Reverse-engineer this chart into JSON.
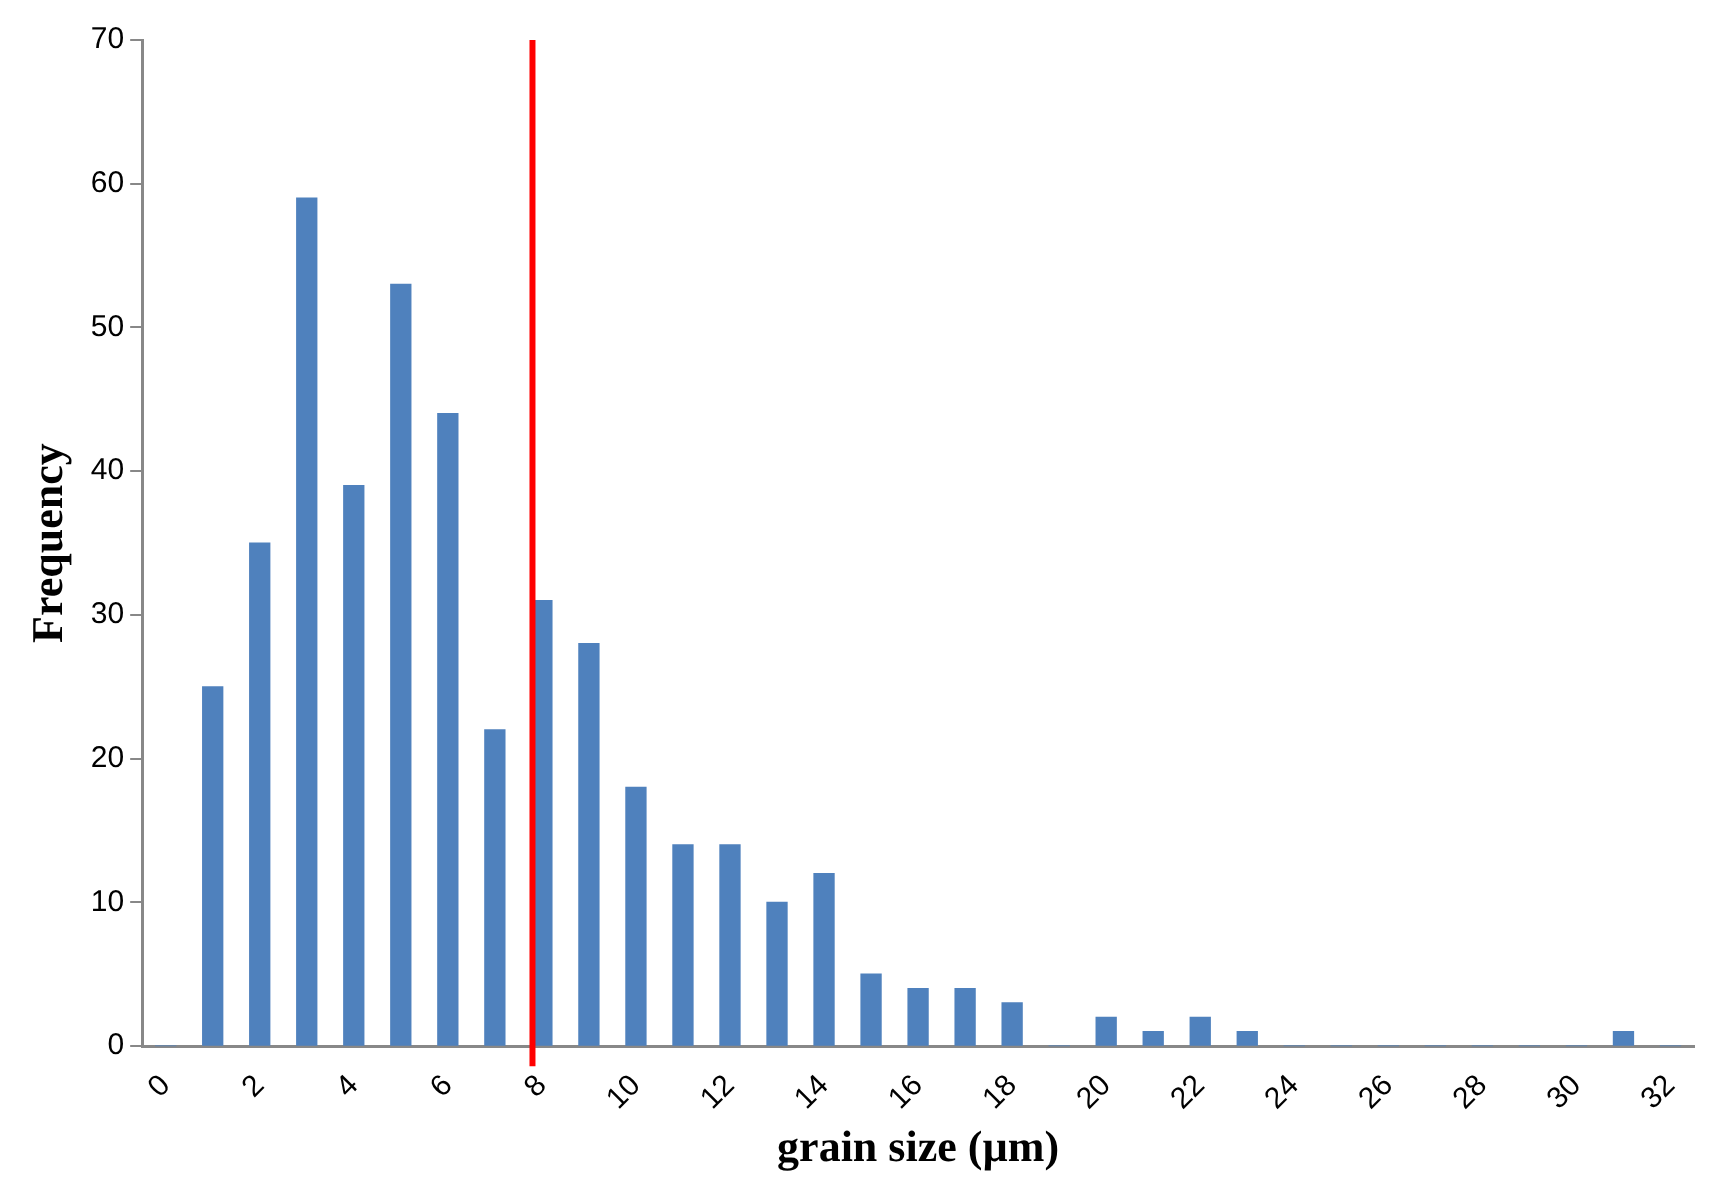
{
  "chart_data": {
    "type": "bar",
    "xlabel": "grain size (µm)",
    "ylabel": "Frequency",
    "x": [
      0,
      1,
      2,
      3,
      4,
      5,
      6,
      7,
      8,
      9,
      10,
      11,
      12,
      13,
      14,
      15,
      16,
      17,
      18,
      19,
      20,
      21,
      22,
      23,
      24,
      25,
      26,
      27,
      28,
      29,
      30,
      31,
      32
    ],
    "values": [
      0,
      25,
      35,
      59,
      39,
      53,
      44,
      22,
      31,
      28,
      18,
      14,
      14,
      10,
      12,
      5,
      4,
      4,
      3,
      0,
      2,
      1,
      2,
      1,
      0,
      0,
      0,
      0,
      0,
      0,
      0,
      1,
      0
    ],
    "color": "#4f81bd",
    "xlim": [
      -0.5,
      32.5
    ],
    "xticks": [
      0,
      2,
      4,
      6,
      8,
      10,
      12,
      14,
      16,
      18,
      20,
      22,
      24,
      26,
      28,
      30,
      32
    ],
    "ylim": [
      0,
      70
    ],
    "yticks": [
      0,
      10,
      20,
      30,
      40,
      50,
      60,
      70
    ],
    "ref_lines": [
      {
        "axis": "x",
        "value": 7.8,
        "color": "#ff0000"
      }
    ],
    "grid": false,
    "legend": false
  }
}
